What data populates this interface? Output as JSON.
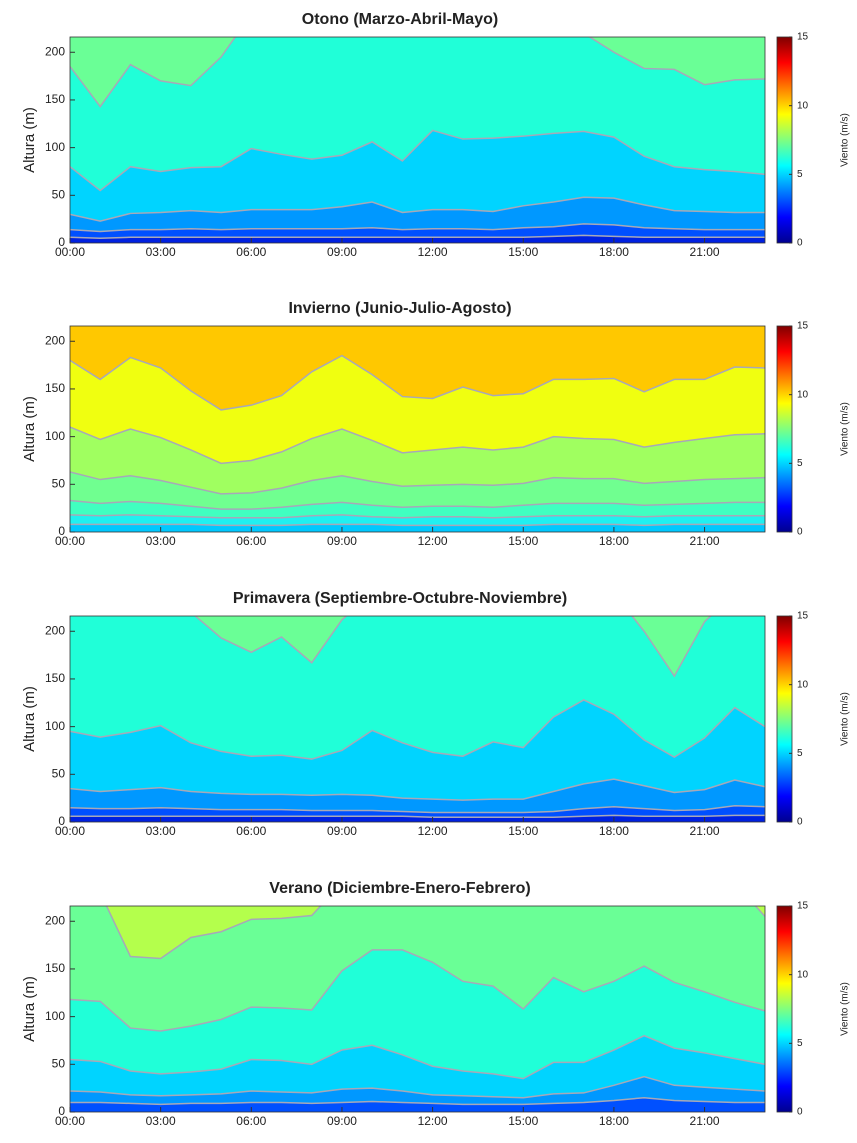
{
  "chart_data": [
    {
      "type": "contour",
      "title": "Otono (Marzo-Abril-Mayo)",
      "ylabel": "Altura (m)",
      "colorbar_label": "Viento (m/s)",
      "x": [
        0,
        1,
        2,
        3,
        4,
        5,
        6,
        7,
        8,
        9,
        10,
        11,
        12,
        13,
        14,
        15,
        16,
        17,
        18,
        19,
        20,
        21,
        22,
        23
      ],
      "xlim": [
        0,
        23
      ],
      "xticks": [
        {
          "value": 0,
          "label": "00:00"
        },
        {
          "value": 3,
          "label": "03:00"
        },
        {
          "value": 6,
          "label": "06:00"
        },
        {
          "value": 9,
          "label": "09:00"
        },
        {
          "value": 12,
          "label": "12:00"
        },
        {
          "value": 15,
          "label": "15:00"
        },
        {
          "value": 18,
          "label": "18:00"
        },
        {
          "value": 21,
          "label": "21:00"
        }
      ],
      "ylim": [
        0,
        216
      ],
      "yticks": [
        0,
        50,
        100,
        150,
        200
      ],
      "clim": [
        0,
        15
      ],
      "cticks": [
        0,
        5,
        10,
        15
      ],
      "top_color": "#6aff96",
      "series": [
        {
          "color": "#20ffd8",
          "values": [
            185,
            143,
            187,
            170,
            165,
            195,
            240,
            240,
            240,
            240,
            240,
            240,
            240,
            240,
            240,
            240,
            240,
            220,
            200,
            183,
            182,
            166,
            171,
            172
          ]
        },
        {
          "color": "#00d4ff",
          "values": [
            80,
            55,
            80,
            75,
            79,
            80,
            99,
            93,
            88,
            92,
            106,
            86,
            118,
            109,
            110,
            112,
            115,
            117,
            111,
            91,
            80,
            77,
            75,
            72
          ]
        },
        {
          "color": "#0098ff",
          "values": [
            30,
            23,
            31,
            32,
            34,
            32,
            35,
            35,
            35,
            38,
            43,
            32,
            35,
            35,
            33,
            39,
            43,
            48,
            47,
            40,
            34,
            33,
            32,
            32
          ]
        },
        {
          "color": "#0050ff",
          "values": [
            14,
            12,
            14,
            14,
            15,
            14,
            15,
            15,
            15,
            15,
            16,
            14,
            15,
            15,
            14,
            16,
            17,
            20,
            19,
            16,
            15,
            14,
            14,
            14
          ]
        },
        {
          "color": "#0020e0",
          "values": [
            6,
            5,
            6,
            6,
            6,
            6,
            6,
            6,
            6,
            6,
            6,
            6,
            6,
            6,
            6,
            6,
            7,
            8,
            7,
            6,
            6,
            6,
            6,
            6
          ]
        }
      ]
    },
    {
      "type": "contour",
      "title": "Invierno (Junio-Julio-Agosto)",
      "ylabel": "Altura (m)",
      "colorbar_label": "Viento (m/s)",
      "x": [
        0,
        1,
        2,
        3,
        4,
        5,
        6,
        7,
        8,
        9,
        10,
        11,
        12,
        13,
        14,
        15,
        16,
        17,
        18,
        19,
        20,
        21,
        22,
        23
      ],
      "xlim": [
        0,
        23
      ],
      "xticks": [
        {
          "value": 0,
          "label": "00:00"
        },
        {
          "value": 3,
          "label": "03:00"
        },
        {
          "value": 6,
          "label": "06:00"
        },
        {
          "value": 9,
          "label": "09:00"
        },
        {
          "value": 12,
          "label": "12:00"
        },
        {
          "value": 15,
          "label": "15:00"
        },
        {
          "value": 18,
          "label": "18:00"
        },
        {
          "value": 21,
          "label": "21:00"
        }
      ],
      "ylim": [
        0,
        216
      ],
      "yticks": [
        0,
        50,
        100,
        150,
        200
      ],
      "clim": [
        0,
        15
      ],
      "cticks": [
        0,
        5,
        10,
        15
      ],
      "top_color": "#ffc800",
      "series": [
        {
          "color": "#f0ff10",
          "values": [
            180,
            160,
            183,
            172,
            148,
            128,
            133,
            143,
            168,
            185,
            165,
            142,
            140,
            152,
            143,
            145,
            160,
            160,
            161,
            147,
            160,
            160,
            173,
            172
          ]
        },
        {
          "color": "#a0ff60",
          "values": [
            110,
            97,
            108,
            99,
            86,
            72,
            75,
            84,
            98,
            108,
            96,
            83,
            86,
            89,
            86,
            89,
            100,
            98,
            97,
            89,
            94,
            98,
            102,
            103
          ]
        },
        {
          "color": "#70ff90",
          "values": [
            63,
            55,
            59,
            54,
            47,
            40,
            41,
            46,
            54,
            59,
            53,
            48,
            49,
            50,
            49,
            51,
            57,
            56,
            56,
            51,
            53,
            55,
            56,
            57
          ]
        },
        {
          "color": "#40ffc0",
          "values": [
            33,
            30,
            32,
            30,
            27,
            24,
            24,
            26,
            29,
            31,
            28,
            26,
            27,
            27,
            26,
            28,
            30,
            30,
            30,
            28,
            29,
            30,
            31,
            31
          ]
        },
        {
          "color": "#20f0f0",
          "values": [
            18,
            17,
            18,
            17,
            16,
            15,
            15,
            15,
            17,
            18,
            16,
            15,
            16,
            16,
            15,
            16,
            17,
            17,
            17,
            16,
            17,
            17,
            17,
            17
          ]
        },
        {
          "color": "#00c8ff",
          "values": [
            8,
            8,
            8,
            8,
            8,
            7,
            7,
            7,
            8,
            8,
            8,
            7,
            7,
            7,
            7,
            7,
            8,
            8,
            8,
            7,
            8,
            8,
            8,
            8
          ]
        }
      ]
    },
    {
      "type": "contour",
      "title": "Primavera (Septiembre-Octubre-Noviembre)",
      "ylabel": "Altura (m)",
      "colorbar_label": "Viento (m/s)",
      "x": [
        0,
        1,
        2,
        3,
        4,
        5,
        6,
        7,
        8,
        9,
        10,
        11,
        12,
        13,
        14,
        15,
        16,
        17,
        18,
        19,
        20,
        21,
        22,
        23
      ],
      "xlim": [
        0,
        23
      ],
      "xticks": [
        {
          "value": 0,
          "label": "00:00"
        },
        {
          "value": 3,
          "label": "03:00"
        },
        {
          "value": 6,
          "label": "06:00"
        },
        {
          "value": 9,
          "label": "09:00"
        },
        {
          "value": 12,
          "label": "12:00"
        },
        {
          "value": 15,
          "label": "15:00"
        },
        {
          "value": 18,
          "label": "18:00"
        },
        {
          "value": 21,
          "label": "21:00"
        }
      ],
      "ylim": [
        0,
        216
      ],
      "yticks": [
        0,
        50,
        100,
        150,
        200
      ],
      "clim": [
        0,
        15
      ],
      "cticks": [
        0,
        5,
        10,
        15
      ],
      "top_color": "#6aff96",
      "series": [
        {
          "color": "#20ffd8",
          "values": [
            240,
            240,
            240,
            240,
            220,
            193,
            178,
            194,
            167,
            212,
            240,
            240,
            240,
            240,
            240,
            240,
            240,
            240,
            240,
            200,
            153,
            210,
            240,
            240
          ]
        },
        {
          "color": "#00d4ff",
          "values": [
            95,
            89,
            94,
            101,
            83,
            74,
            69,
            70,
            66,
            75,
            96,
            83,
            73,
            69,
            84,
            78,
            110,
            128,
            113,
            86,
            68,
            88,
            120,
            100
          ]
        },
        {
          "color": "#0098ff",
          "values": [
            35,
            32,
            34,
            36,
            32,
            30,
            29,
            29,
            28,
            29,
            28,
            25,
            24,
            23,
            24,
            24,
            32,
            40,
            45,
            38,
            31,
            34,
            44,
            37
          ]
        },
        {
          "color": "#0050ff",
          "values": [
            15,
            14,
            14,
            15,
            14,
            13,
            13,
            13,
            12,
            12,
            12,
            11,
            10,
            10,
            10,
            10,
            11,
            14,
            16,
            14,
            12,
            13,
            17,
            16
          ]
        },
        {
          "color": "#0020e0",
          "values": [
            6,
            6,
            6,
            6,
            6,
            6,
            6,
            6,
            6,
            6,
            6,
            6,
            5,
            5,
            5,
            5,
            5,
            6,
            7,
            6,
            6,
            6,
            7,
            7
          ]
        }
      ]
    },
    {
      "type": "contour",
      "title": "Verano (Diciembre-Enero-Febrero)",
      "ylabel": "Altura (m)",
      "colorbar_label": "Viento (m/s)",
      "x": [
        0,
        1,
        2,
        3,
        4,
        5,
        6,
        7,
        8,
        9,
        10,
        11,
        12,
        13,
        14,
        15,
        16,
        17,
        18,
        19,
        20,
        21,
        22,
        23
      ],
      "xlim": [
        0,
        23
      ],
      "xticks": [
        {
          "value": 0,
          "label": "00:00"
        },
        {
          "value": 3,
          "label": "03:00"
        },
        {
          "value": 6,
          "label": "06:00"
        },
        {
          "value": 9,
          "label": "09:00"
        },
        {
          "value": 12,
          "label": "12:00"
        },
        {
          "value": 15,
          "label": "15:00"
        },
        {
          "value": 18,
          "label": "18:00"
        },
        {
          "value": 21,
          "label": "21:00"
        }
      ],
      "ylim": [
        0,
        216
      ],
      "yticks": [
        0,
        50,
        100,
        150,
        200
      ],
      "clim": [
        0,
        15
      ],
      "cticks": [
        0,
        5,
        10,
        15
      ],
      "top_color": "#b4ff4c",
      "series": [
        {
          "color": "#6aff96",
          "values": [
            240,
            230,
            163,
            161,
            183,
            189,
            202,
            203,
            206,
            240,
            240,
            240,
            240,
            240,
            240,
            240,
            240,
            240,
            240,
            240,
            240,
            240,
            240,
            205
          ]
        },
        {
          "color": "#20ffd8",
          "values": [
            118,
            116,
            88,
            85,
            90,
            97,
            110,
            109,
            107,
            148,
            170,
            170,
            157,
            137,
            132,
            108,
            141,
            126,
            137,
            153,
            136,
            126,
            115,
            106
          ]
        },
        {
          "color": "#00d4ff",
          "values": [
            55,
            53,
            43,
            40,
            42,
            45,
            55,
            54,
            50,
            65,
            70,
            60,
            48,
            43,
            40,
            35,
            52,
            52,
            65,
            80,
            67,
            62,
            56,
            50
          ]
        },
        {
          "color": "#0098ff",
          "values": [
            22,
            21,
            18,
            17,
            18,
            19,
            22,
            21,
            20,
            24,
            25,
            22,
            18,
            17,
            16,
            15,
            19,
            20,
            28,
            37,
            28,
            26,
            24,
            22
          ]
        },
        {
          "color": "#0050ff",
          "values": [
            10,
            10,
            9,
            8,
            9,
            9,
            10,
            10,
            9,
            10,
            11,
            10,
            9,
            8,
            8,
            8,
            9,
            10,
            12,
            15,
            12,
            11,
            10,
            10
          ]
        }
      ]
    }
  ]
}
